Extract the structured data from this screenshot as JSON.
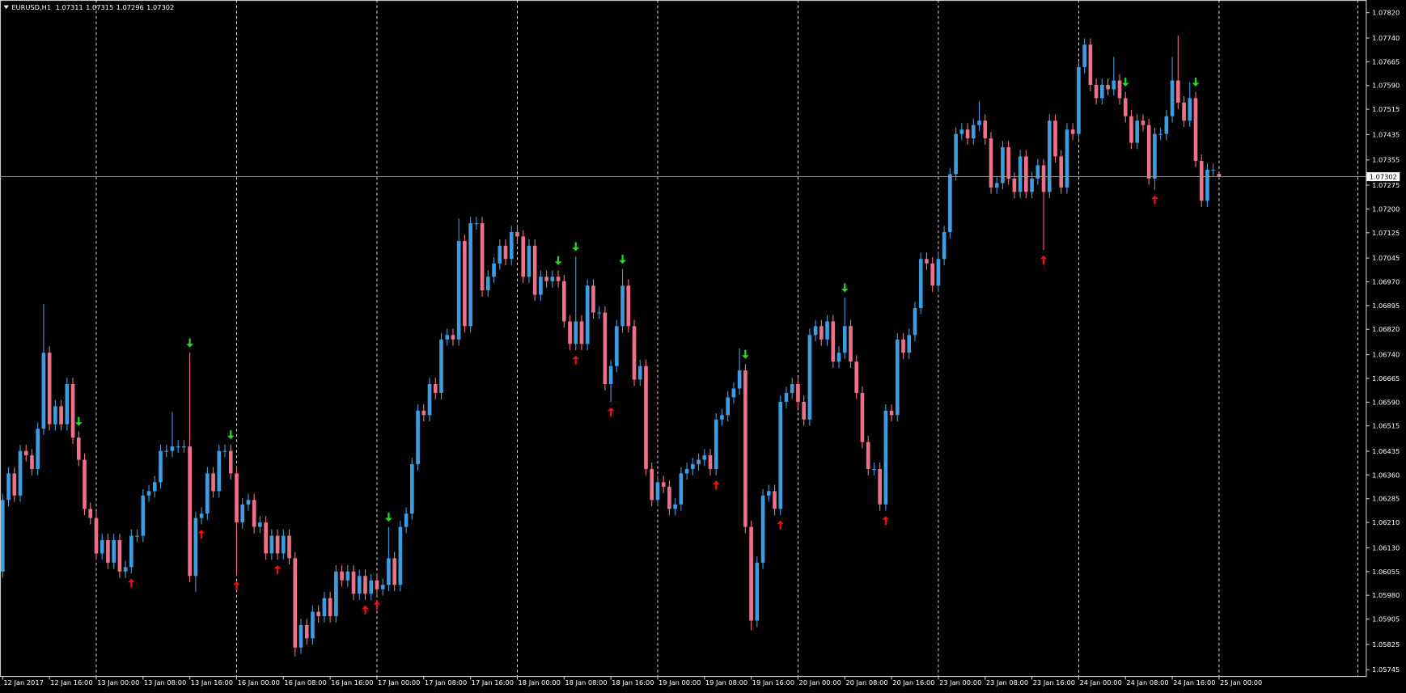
{
  "chart_data": {
    "type": "candlestick",
    "title": "EURUSD,H1",
    "bull_color": "#3d9de0",
    "bear_color": "#f0708a",
    "buy_color": "#ee1111",
    "sell_color": "#22dd22",
    "xlim": [
      -0.46,
      233.1
    ],
    "ylim": [
      1.05725,
      1.0786
    ],
    "xticks": [
      {
        "value": 0,
        "label": "12 Jan 2017"
      },
      {
        "value": 8,
        "label": "12 Jan 16:00"
      },
      {
        "value": 16,
        "label": "13 Jan 00:00"
      },
      {
        "value": 24,
        "label": "13 Jan 08:00"
      },
      {
        "value": 32,
        "label": "13 Jan 16:00"
      },
      {
        "value": 40,
        "label": "16 Jan 00:00"
      },
      {
        "value": 48,
        "label": "16 Jan 08:00"
      },
      {
        "value": 56,
        "label": "16 Jan 16:00"
      },
      {
        "value": 64,
        "label": "17 Jan 00:00"
      },
      {
        "value": 72,
        "label": "17 Jan 08:00"
      },
      {
        "value": 80,
        "label": "17 Jan 16:00"
      },
      {
        "value": 88,
        "label": "18 Jan 00:00"
      },
      {
        "value": 96,
        "label": "18 Jan 08:00"
      },
      {
        "value": 104,
        "label": "18 Jan 16:00"
      },
      {
        "value": 112,
        "label": "19 Jan 00:00"
      },
      {
        "value": 120,
        "label": "19 Jan 08:00"
      },
      {
        "value": 128,
        "label": "19 Jan 16:00"
      },
      {
        "value": 136,
        "label": "20 Jan 00:00"
      },
      {
        "value": 144,
        "label": "20 Jan 08:00"
      },
      {
        "value": 152,
        "label": "20 Jan 16:00"
      },
      {
        "value": 160,
        "label": "23 Jan 00:00"
      },
      {
        "value": 168,
        "label": "23 Jan 08:00"
      },
      {
        "value": 176,
        "label": "23 Jan 16:00"
      },
      {
        "value": 184,
        "label": "24 Jan 00:00"
      },
      {
        "value": 192,
        "label": "24 Jan 08:00"
      },
      {
        "value": 200,
        "label": "24 Jan 16:00"
      },
      {
        "value": 208,
        "label": "25 Jan 00:00"
      }
    ],
    "yticks": [
      {
        "value": 1.0782,
        "label": "1.07820"
      },
      {
        "value": 1.0774,
        "label": "1.07740"
      },
      1.07665,
      {
        "value": 1.0759,
        "label": "1.07590"
      },
      1.07515,
      1.07435,
      1.07355,
      1.07275,
      {
        "value": 1.072,
        "label": "1.07200"
      },
      1.07125,
      1.07045,
      {
        "value": 1.0697,
        "label": "1.06970"
      },
      1.06895,
      {
        "value": 1.0682,
        "label": "1.06820"
      },
      {
        "value": 1.0674,
        "label": "1.06740"
      },
      1.06665,
      {
        "value": 1.0659,
        "label": "1.06590"
      },
      1.06515,
      1.06435,
      {
        "value": 1.0636,
        "label": "1.06360"
      },
      1.06285,
      {
        "value": 1.0621,
        "label": "1.06210"
      },
      {
        "value": 1.0613,
        "label": "1.06130"
      },
      1.06055,
      {
        "value": 1.0598,
        "label": "1.05980"
      },
      1.05905,
      1.05825,
      1.05745
    ],
    "separators": [
      16,
      40,
      64,
      88,
      112,
      136,
      160,
      184,
      208
    ],
    "buy_signals": [
      22,
      34,
      40,
      47,
      62,
      64,
      98,
      104,
      122,
      133,
      151,
      178,
      197
    ],
    "sell_signals": [
      13,
      32,
      39,
      66,
      95,
      98,
      106,
      127,
      144,
      192,
      204
    ],
    "open": [
      1.06055,
      1.06281,
      1.06365,
      1.06295,
      1.06436,
      1.06422,
      1.06379,
      1.06506,
      1.06746,
      1.0652,
      1.06577,
      1.0652,
      1.06647,
      1.06478,
      1.06408,
      1.06253,
      1.06224,
      1.06112,
      1.06154,
      1.06083,
      1.06154,
      1.06055,
      1.06069,
      1.06168,
      1.06168,
      1.06295,
      1.06309,
      1.06337,
      1.06436,
      1.06436,
      1.0645,
      1.0645,
      1.0645,
      1.06041,
      1.06224,
      1.06238,
      1.06365,
      1.06309,
      1.06436,
      1.06436,
      1.06365,
      1.0621,
      1.06267,
      1.06281,
      1.06196,
      1.0621,
      1.06112,
      1.06168,
      1.06112,
      1.06168,
      1.06097,
      1.05815,
      1.05886,
      1.05844,
      1.05928,
      1.05914,
      1.05971,
      1.05914,
      1.06055,
      1.06027,
      1.06055,
      1.05985,
      1.06041,
      1.05985,
      1.06027,
      1.05999,
      1.06013,
      1.06097,
      1.06013,
      1.06196,
      1.06238,
      1.06394,
      1.06563,
      1.06549,
      1.06647,
      1.06619,
      1.06788,
      1.06802,
      1.06788,
      1.07099,
      1.0683,
      1.07155,
      1.07155,
      1.06943,
      1.06986,
      1.07028,
      1.07084,
      1.07042,
      1.07127,
      1.07113,
      1.06986,
      1.07084,
      1.06929,
      1.06986,
      1.06972,
      1.06986,
      1.06972,
      1.06845,
      1.06774,
      1.06845,
      1.06774,
      1.06958,
      1.06873,
      1.06873,
      1.06647,
      1.06704,
      1.0683,
      1.06958,
      1.0683,
      1.06661,
      1.06704,
      1.06379,
      1.06281,
      1.06337,
      1.06323,
      1.06253,
      1.06267,
      1.06365,
      1.06379,
      1.06394,
      1.06408,
      1.06422,
      1.06379,
      1.06535,
      1.06549,
      1.06605,
      1.06633,
      1.0669,
      1.06196,
      1.059,
      1.06083,
      1.06295,
      1.06309,
      1.06253,
      1.06591,
      1.06619,
      1.06647,
      1.06591,
      1.06535,
      1.06802,
      1.0683,
      1.06788,
      1.06845,
      1.06718,
      1.06746,
      1.0683,
      1.06718,
      1.06619,
      1.06464,
      1.06379,
      1.06379,
      1.06267,
      1.06563,
      1.06549,
      1.06788,
      1.06746,
      1.06802,
      1.06887,
      1.07042,
      1.07028,
      1.06958,
      1.07042,
      1.07127,
      1.0731,
      1.07437,
      1.07451,
      1.07423,
      1.07465,
      1.07479,
      1.07423,
      1.07268,
      1.07282,
      1.07395,
      1.07296,
      1.07254,
      1.07366,
      1.07254,
      1.07296,
      1.07338,
      1.07254,
      1.07479,
      1.07366,
      1.07268,
      1.07451,
      1.07437,
      1.07648,
      1.07719,
      1.07592,
      1.0755,
      1.07592,
      1.07578,
      1.07606,
      1.0755,
      1.07493,
      1.07409,
      1.07479,
      1.07465,
      1.07296,
      1.07437,
      1.07437,
      1.07493,
      1.07606,
      1.07536,
      1.07479,
      1.0755,
      1.07352,
      1.07226,
      1.07324,
      1.07311
    ],
    "high": [
      1.06301,
      1.06385,
      1.06385,
      1.06456,
      1.06456,
      1.06442,
      1.06526,
      1.069,
      1.06766,
      1.06597,
      1.06597,
      1.06667,
      1.06667,
      1.06498,
      1.06428,
      1.06273,
      1.06244,
      1.06174,
      1.06174,
      1.06174,
      1.06174,
      1.06089,
      1.06188,
      1.06188,
      1.06315,
      1.06329,
      1.06357,
      1.06456,
      1.06456,
      1.0656,
      1.0647,
      1.0647,
      1.06746,
      1.06244,
      1.06258,
      1.06385,
      1.06385,
      1.06456,
      1.06456,
      1.06456,
      1.06385,
      1.06287,
      1.06301,
      1.06301,
      1.0623,
      1.0623,
      1.06188,
      1.06188,
      1.06188,
      1.06188,
      1.06117,
      1.05906,
      1.05906,
      1.05948,
      1.05948,
      1.05991,
      1.05991,
      1.06075,
      1.06075,
      1.06075,
      1.06075,
      1.06061,
      1.06061,
      1.06047,
      1.06047,
      1.06033,
      1.06196,
      1.06117,
      1.06216,
      1.06258,
      1.06414,
      1.06583,
      1.06583,
      1.06667,
      1.06667,
      1.06808,
      1.06822,
      1.06822,
      1.0717,
      1.07119,
      1.07175,
      1.07175,
      1.07175,
      1.07006,
      1.07048,
      1.07104,
      1.07104,
      1.07147,
      1.07147,
      1.07133,
      1.07104,
      1.07104,
      1.07006,
      1.07006,
      1.07006,
      1.07006,
      1.06992,
      1.06865,
      1.0705,
      1.06865,
      1.06978,
      1.06978,
      1.06893,
      1.06893,
      1.06724,
      1.0685,
      1.0701,
      1.06978,
      1.0685,
      1.06724,
      1.06724,
      1.06399,
      1.06357,
      1.06357,
      1.06343,
      1.06287,
      1.06385,
      1.06399,
      1.06414,
      1.06428,
      1.06442,
      1.06442,
      1.06555,
      1.06569,
      1.06625,
      1.06653,
      1.0676,
      1.0671,
      1.06216,
      1.06103,
      1.06315,
      1.06329,
      1.06329,
      1.06611,
      1.06639,
      1.06667,
      1.06667,
      1.06611,
      1.06822,
      1.0685,
      1.0685,
      1.06865,
      1.06865,
      1.06766,
      1.0692,
      1.0685,
      1.06738,
      1.06639,
      1.06484,
      1.06399,
      1.06399,
      1.06583,
      1.06583,
      1.06808,
      1.06808,
      1.06822,
      1.06907,
      1.07062,
      1.07062,
      1.07048,
      1.07062,
      1.07147,
      1.0733,
      1.07457,
      1.07471,
      1.07471,
      1.07485,
      1.0754,
      1.07499,
      1.07443,
      1.07302,
      1.07415,
      1.07415,
      1.07316,
      1.07386,
      1.07386,
      1.07316,
      1.07358,
      1.07358,
      1.07499,
      1.07499,
      1.07386,
      1.07471,
      1.07471,
      1.07668,
      1.07739,
      1.07739,
      1.07612,
      1.07612,
      1.07612,
      1.0768,
      1.07626,
      1.0757,
      1.07513,
      1.07499,
      1.07499,
      1.07485,
      1.07457,
      1.07457,
      1.07513,
      1.0768,
      1.07747,
      1.07556,
      1.076,
      1.0757,
      1.07372,
      1.07344,
      1.07344,
      1.07315
    ],
    "low": [
      1.06035,
      1.06261,
      1.06275,
      1.06275,
      1.06402,
      1.06359,
      1.06359,
      1.06486,
      1.065,
      1.065,
      1.065,
      1.065,
      1.06458,
      1.06388,
      1.06233,
      1.06204,
      1.06092,
      1.06092,
      1.06063,
      1.06063,
      1.06035,
      1.06035,
      1.06049,
      1.06148,
      1.06148,
      1.06275,
      1.06289,
      1.06317,
      1.06416,
      1.06416,
      1.0643,
      1.0643,
      1.06021,
      1.0599,
      1.06204,
      1.06218,
      1.06289,
      1.06289,
      1.06416,
      1.06345,
      1.06041,
      1.0619,
      1.06247,
      1.06176,
      1.06176,
      1.06092,
      1.06092,
      1.06092,
      1.06092,
      1.06077,
      1.05787,
      1.05795,
      1.05824,
      1.05824,
      1.05894,
      1.05894,
      1.05894,
      1.05894,
      1.06007,
      1.06007,
      1.05965,
      1.05965,
      1.05965,
      1.05965,
      1.05979,
      1.05979,
      1.05993,
      1.05993,
      1.05993,
      1.06176,
      1.06218,
      1.06374,
      1.06529,
      1.06529,
      1.06599,
      1.06599,
      1.06768,
      1.06768,
      1.06768,
      1.0681,
      1.0681,
      1.07135,
      1.06923,
      1.06923,
      1.06966,
      1.07008,
      1.07022,
      1.07022,
      1.07093,
      1.06966,
      1.06966,
      1.06909,
      1.06909,
      1.06952,
      1.06952,
      1.06952,
      1.06825,
      1.06754,
      1.06754,
      1.06754,
      1.06754,
      1.06853,
      1.06853,
      1.06627,
      1.0659,
      1.06684,
      1.0681,
      1.0681,
      1.06641,
      1.06641,
      1.06359,
      1.06261,
      1.06261,
      1.06303,
      1.06233,
      1.06233,
      1.06247,
      1.06345,
      1.06359,
      1.06374,
      1.06388,
      1.06359,
      1.06359,
      1.06515,
      1.06529,
      1.06585,
      1.06613,
      1.06176,
      1.0587,
      1.0588,
      1.06063,
      1.06275,
      1.06233,
      1.06233,
      1.06571,
      1.06599,
      1.06571,
      1.06515,
      1.06515,
      1.06782,
      1.06768,
      1.06768,
      1.06698,
      1.06698,
      1.06726,
      1.06698,
      1.06599,
      1.06444,
      1.06359,
      1.06359,
      1.06247,
      1.06247,
      1.06529,
      1.06529,
      1.06726,
      1.06726,
      1.06782,
      1.06867,
      1.07008,
      1.06938,
      1.06938,
      1.07022,
      1.07107,
      1.0729,
      1.07417,
      1.07403,
      1.07403,
      1.07445,
      1.07403,
      1.07248,
      1.07248,
      1.07262,
      1.07276,
      1.07234,
      1.07234,
      1.07234,
      1.07234,
      1.07276,
      1.0707,
      1.07234,
      1.07346,
      1.07248,
      1.07248,
      1.07417,
      1.07417,
      1.07628,
      1.07572,
      1.0753,
      1.0753,
      1.07558,
      1.07558,
      1.0753,
      1.07473,
      1.07389,
      1.07389,
      1.07445,
      1.07276,
      1.0726,
      1.07417,
      1.07417,
      1.07473,
      1.07516,
      1.07459,
      1.07459,
      1.07332,
      1.07206,
      1.07206,
      1.07304,
      1.07296
    ],
    "close": [
      1.06281,
      1.06365,
      1.06295,
      1.06436,
      1.06422,
      1.06379,
      1.06506,
      1.06746,
      1.0652,
      1.06577,
      1.0652,
      1.06647,
      1.06478,
      1.06408,
      1.06253,
      1.06224,
      1.06112,
      1.06154,
      1.06083,
      1.06154,
      1.06055,
      1.06069,
      1.06168,
      1.06168,
      1.06295,
      1.06309,
      1.06337,
      1.06436,
      1.06436,
      1.0645,
      1.0645,
      1.0645,
      1.06041,
      1.06224,
      1.06238,
      1.06365,
      1.06309,
      1.06436,
      1.06436,
      1.06365,
      1.0621,
      1.06267,
      1.06281,
      1.06196,
      1.0621,
      1.06112,
      1.06168,
      1.06112,
      1.06168,
      1.06097,
      1.05815,
      1.05886,
      1.05844,
      1.05928,
      1.05914,
      1.05971,
      1.05914,
      1.06055,
      1.06027,
      1.06055,
      1.05985,
      1.06041,
      1.05985,
      1.06027,
      1.05999,
      1.06013,
      1.06097,
      1.06013,
      1.06196,
      1.06238,
      1.06394,
      1.06563,
      1.06549,
      1.06647,
      1.06619,
      1.06788,
      1.06802,
      1.06788,
      1.07099,
      1.0683,
      1.07155,
      1.07155,
      1.06943,
      1.06986,
      1.07028,
      1.07084,
      1.07042,
      1.07127,
      1.07113,
      1.06986,
      1.07084,
      1.06929,
      1.06986,
      1.06972,
      1.06986,
      1.06972,
      1.06845,
      1.06774,
      1.06845,
      1.06774,
      1.06958,
      1.06873,
      1.06873,
      1.06647,
      1.06704,
      1.0683,
      1.06958,
      1.0683,
      1.06661,
      1.06704,
      1.06379,
      1.06281,
      1.06337,
      1.06323,
      1.06253,
      1.06267,
      1.06365,
      1.06379,
      1.06394,
      1.06408,
      1.06422,
      1.06379,
      1.06535,
      1.06549,
      1.06605,
      1.06633,
      1.0669,
      1.06196,
      1.059,
      1.06083,
      1.06295,
      1.06309,
      1.06253,
      1.06591,
      1.06619,
      1.06647,
      1.06591,
      1.06535,
      1.06802,
      1.0683,
      1.06788,
      1.06845,
      1.06718,
      1.06746,
      1.0683,
      1.06718,
      1.06619,
      1.06464,
      1.06379,
      1.06379,
      1.06267,
      1.06563,
      1.06549,
      1.06788,
      1.06746,
      1.06802,
      1.06887,
      1.07042,
      1.07028,
      1.06958,
      1.07042,
      1.07127,
      1.0731,
      1.07437,
      1.07451,
      1.07423,
      1.07465,
      1.07479,
      1.07423,
      1.07268,
      1.07282,
      1.07395,
      1.07296,
      1.07254,
      1.07366,
      1.07254,
      1.07296,
      1.07338,
      1.07254,
      1.07479,
      1.07366,
      1.07268,
      1.07451,
      1.07437,
      1.07648,
      1.07719,
      1.07592,
      1.0755,
      1.07592,
      1.07578,
      1.07606,
      1.0755,
      1.07493,
      1.07409,
      1.07479,
      1.07465,
      1.07296,
      1.07437,
      1.07437,
      1.07493,
      1.07606,
      1.07536,
      1.07479,
      1.0755,
      1.07352,
      1.07226,
      1.07324,
      1.07324,
      1.07302
    ]
  }
}
